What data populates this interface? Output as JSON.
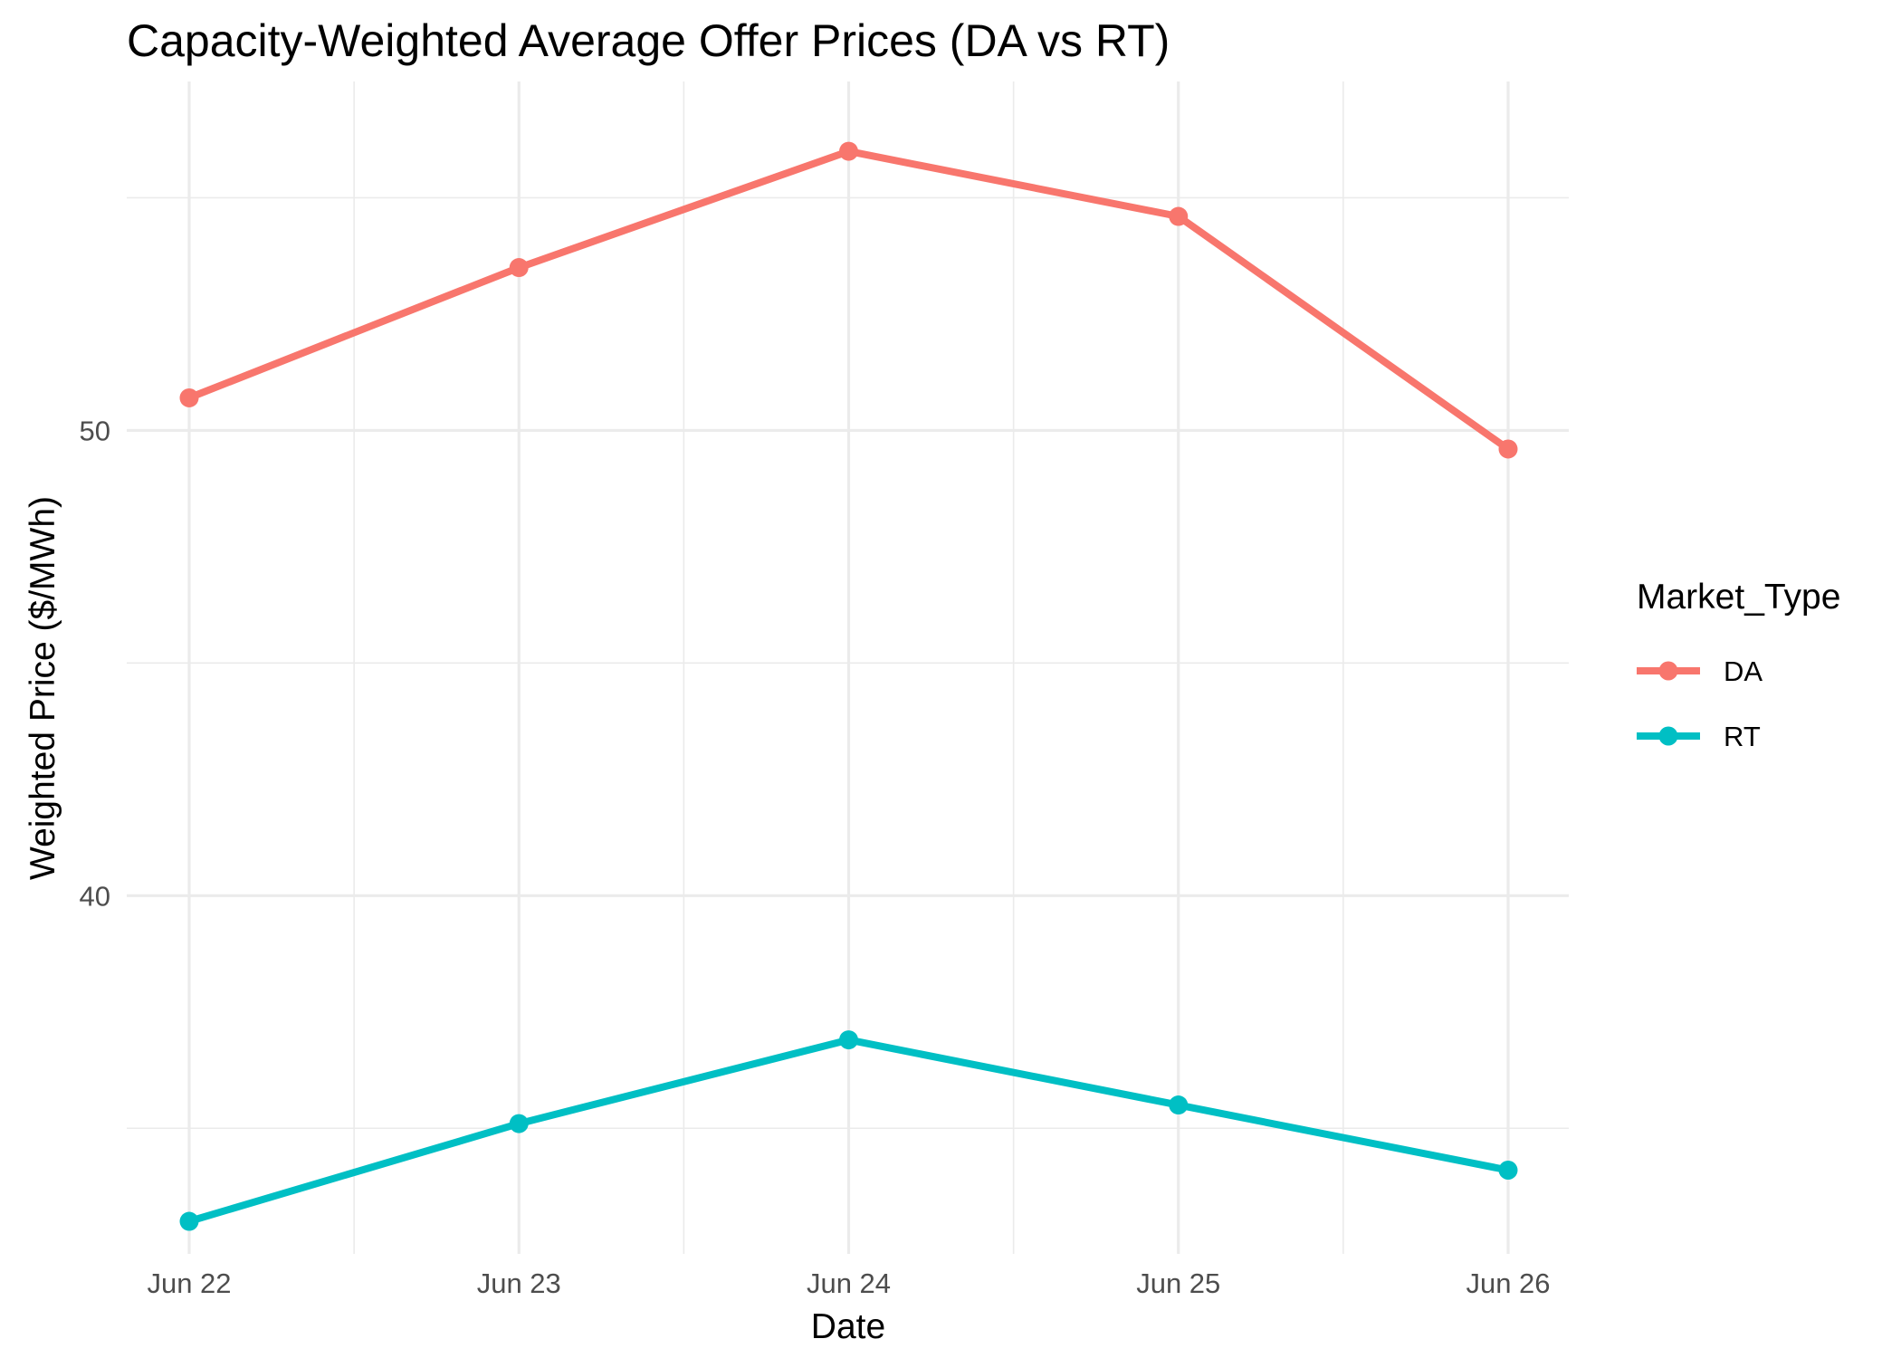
{
  "chart_data": {
    "type": "line",
    "title": "Capacity-Weighted Average Offer Prices (DA vs RT)",
    "xlabel": "Date",
    "ylabel": "Weighted Price ($/MWh)",
    "categories": [
      "Jun 22",
      "Jun 23",
      "Jun 24",
      "Jun 25",
      "Jun 26"
    ],
    "series": [
      {
        "name": "DA",
        "color": "#F8766D",
        "values": [
          50.7,
          53.5,
          56.0,
          54.6,
          49.6
        ]
      },
      {
        "name": "RT",
        "color": "#00BFC4",
        "values": [
          33.0,
          35.1,
          36.9,
          35.5,
          34.1
        ]
      }
    ],
    "y_ticks": [
      40,
      50
    ],
    "ylim": [
      32.3,
      57.5
    ],
    "grid": true,
    "legend": {
      "title": "Market_Type",
      "position": "right"
    }
  }
}
